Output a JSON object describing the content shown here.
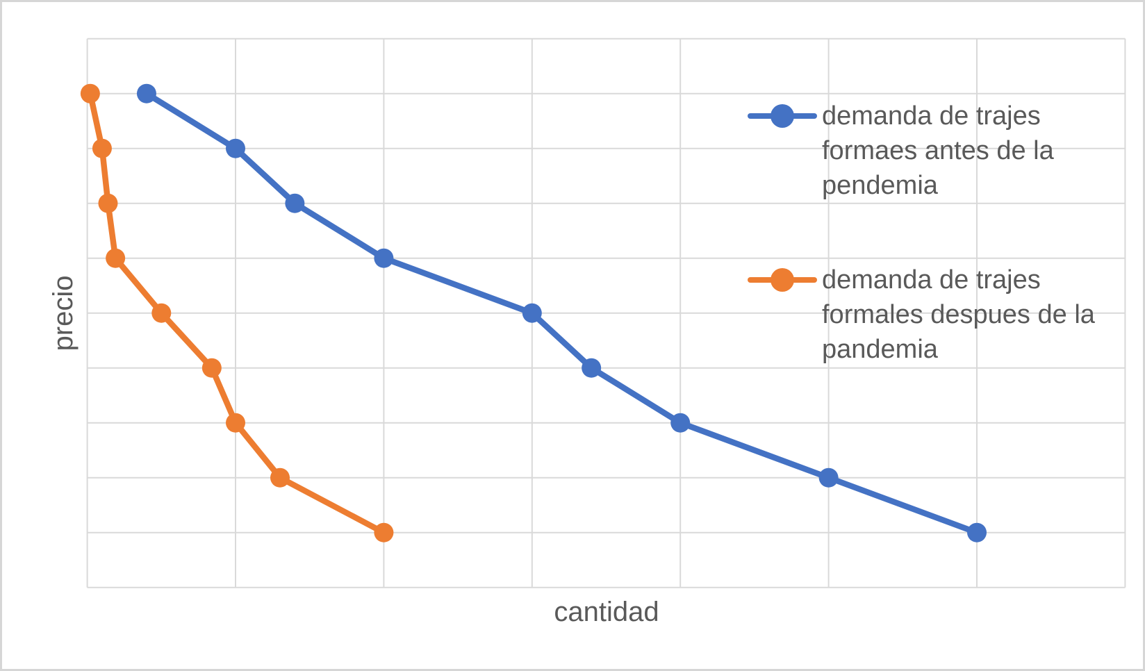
{
  "colors": {
    "series_blue": "#4472C4",
    "series_orange": "#ED7D31",
    "gridline": "#D9D9D9",
    "text": "#595959",
    "frame_border": "#D6D6D6",
    "background": "#FFFFFF"
  },
  "axes": {
    "x_title": "cantidad",
    "y_title": "precio"
  },
  "legend": {
    "position": "right",
    "entries": [
      {
        "label": "demanda de trajes\nformaes antes de la\npendemia",
        "color": "#4472C4"
      },
      {
        "label": "demanda de trajes\nformales despues de la\npandemia",
        "color": "#ED7D31"
      }
    ]
  },
  "chart_data": {
    "type": "line",
    "title": "",
    "xlabel": "cantidad",
    "ylabel": "precio",
    "xlim": [
      0,
      7
    ],
    "ylim": [
      0,
      10
    ],
    "grid": true,
    "gridline_step": {
      "x": 1,
      "y": 1
    },
    "tick_labels_visible": false,
    "units_note": "no numeric tick labels shown; point coordinates are in gridline units",
    "legend_position": "right",
    "marker": "filled-circle",
    "series": [
      {
        "name": "demanda de trajes formaes antes de la pendemia",
        "color": "#4472C4",
        "points": [
          [
            0.4,
            9
          ],
          [
            1.0,
            8
          ],
          [
            1.4,
            7
          ],
          [
            2.0,
            6
          ],
          [
            3.0,
            5
          ],
          [
            3.4,
            4
          ],
          [
            4.0,
            3
          ],
          [
            5.0,
            2
          ],
          [
            6.0,
            1
          ]
        ]
      },
      {
        "name": "demanda de trajes formales despues de la pandemia",
        "color": "#ED7D31",
        "points": [
          [
            0.02,
            9
          ],
          [
            0.1,
            8
          ],
          [
            0.14,
            7
          ],
          [
            0.19,
            6
          ],
          [
            0.5,
            5
          ],
          [
            0.84,
            4
          ],
          [
            1.0,
            3
          ],
          [
            1.3,
            2
          ],
          [
            2.0,
            1
          ]
        ]
      }
    ]
  }
}
